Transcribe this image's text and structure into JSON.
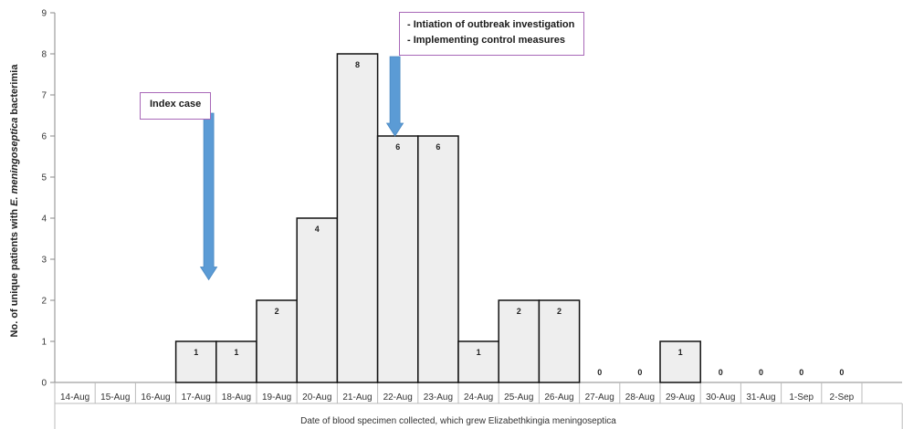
{
  "chart_data": {
    "type": "bar",
    "xlabel": "Date of blood specimen collected, which grew Elizabethkingia meningoseptica",
    "ylabel_parts": [
      "No. of unique patients with ",
      "E. meningoseptica",
      " bacterimia"
    ],
    "categories": [
      "14-Aug",
      "15-Aug",
      "16-Aug",
      "17-Aug",
      "18-Aug",
      "19-Aug",
      "20-Aug",
      "21-Aug",
      "22-Aug",
      "23-Aug",
      "24-Aug",
      "25-Aug",
      "26-Aug",
      "27-Aug",
      "28-Aug",
      "29-Aug",
      "30-Aug",
      "31-Aug",
      "1-Sep",
      "2-Sep"
    ],
    "values": [
      null,
      null,
      null,
      1,
      1,
      2,
      4,
      8,
      6,
      6,
      1,
      2,
      2,
      0,
      0,
      1,
      0,
      0,
      0,
      0
    ],
    "ylim": [
      0,
      9
    ],
    "yticks": [
      0,
      1,
      2,
      3,
      4,
      5,
      6,
      7,
      8,
      9
    ],
    "grid": false,
    "colors": {
      "bar_fill": "#eeeeee",
      "bar_stroke": "#111111",
      "arrow": "#5b9bd5",
      "annotation_border": "#a868b8"
    },
    "annotations": [
      {
        "id": "index",
        "lines": [
          "Index case"
        ],
        "arrow_at_category": "17-Aug",
        "arrow_to_value": 2.5
      },
      {
        "id": "outbreak",
        "lines": [
          "- Intiation of outbreak investigation",
          "- Implementing control measures"
        ],
        "arrow_at_category": "22-Aug",
        "arrow_to_value": 6.0
      }
    ]
  }
}
